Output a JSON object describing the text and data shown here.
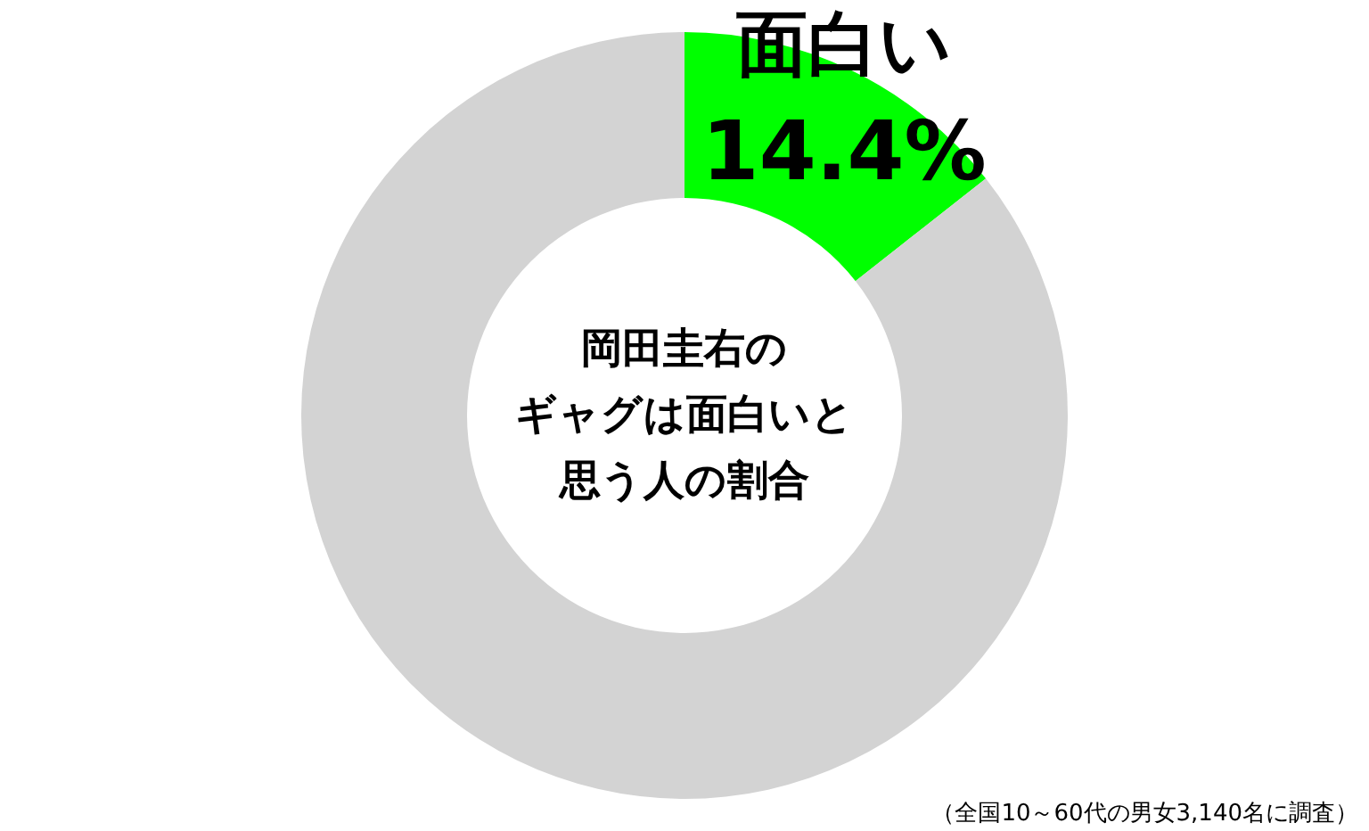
{
  "chart_data": {
    "type": "donut",
    "categories": [
      "面白い",
      null
    ],
    "values": [
      14.4,
      85.6
    ],
    "colors": [
      "#00ff00",
      "#d3d3d3"
    ],
    "value_labels": [
      "14.4%",
      null
    ],
    "annotations": [
      "岡田圭右の",
      "ギャグは面白いと",
      "思う人の割合",
      "（全国10～60代の男女3,140名に調査）"
    ]
  }
}
